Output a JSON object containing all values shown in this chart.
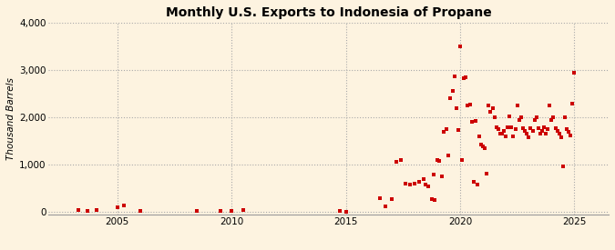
{
  "title": "Monthly U.S. Exports to Indonesia of Propane",
  "ylabel": "Thousand Barrels",
  "background_color": "#fdf3e0",
  "dot_color": "#cc0000",
  "xlim": [
    2002.0,
    2026.5
  ],
  "ylim": [
    -50,
    4000
  ],
  "yticks": [
    0,
    1000,
    2000,
    3000,
    4000
  ],
  "xticks": [
    2005,
    2010,
    2015,
    2020,
    2025
  ],
  "scatter_data": [
    [
      2003.3,
      50
    ],
    [
      2003.7,
      30
    ],
    [
      2004.1,
      40
    ],
    [
      2005.0,
      100
    ],
    [
      2005.3,
      150
    ],
    [
      2006.0,
      30
    ],
    [
      2008.5,
      20
    ],
    [
      2009.5,
      30
    ],
    [
      2010.0,
      20
    ],
    [
      2010.5,
      50
    ],
    [
      2014.75,
      30
    ],
    [
      2015.0,
      10
    ],
    [
      2016.5,
      300
    ],
    [
      2016.75,
      120
    ],
    [
      2017.0,
      280
    ],
    [
      2017.2,
      1070
    ],
    [
      2017.4,
      1100
    ],
    [
      2017.6,
      600
    ],
    [
      2017.8,
      580
    ],
    [
      2018.0,
      600
    ],
    [
      2018.2,
      650
    ],
    [
      2018.4,
      700
    ],
    [
      2018.5,
      590
    ],
    [
      2018.6,
      550
    ],
    [
      2018.75,
      280
    ],
    [
      2018.85,
      790
    ],
    [
      2018.9,
      260
    ],
    [
      2019.0,
      1100
    ],
    [
      2019.1,
      1080
    ],
    [
      2019.2,
      750
    ],
    [
      2019.3,
      1700
    ],
    [
      2019.4,
      1750
    ],
    [
      2019.5,
      1200
    ],
    [
      2019.58,
      2400
    ],
    [
      2019.67,
      2550
    ],
    [
      2019.75,
      2870
    ],
    [
      2019.83,
      2200
    ],
    [
      2019.92,
      1730
    ],
    [
      2020.0,
      3500
    ],
    [
      2020.08,
      1100
    ],
    [
      2020.17,
      2820
    ],
    [
      2020.25,
      2850
    ],
    [
      2020.33,
      2250
    ],
    [
      2020.42,
      2280
    ],
    [
      2020.5,
      1900
    ],
    [
      2020.58,
      650
    ],
    [
      2020.67,
      1920
    ],
    [
      2020.75,
      580
    ],
    [
      2020.83,
      1600
    ],
    [
      2020.92,
      1430
    ],
    [
      2021.0,
      1380
    ],
    [
      2021.08,
      1350
    ],
    [
      2021.17,
      820
    ],
    [
      2021.25,
      2250
    ],
    [
      2021.33,
      2120
    ],
    [
      2021.42,
      2200
    ],
    [
      2021.5,
      2000
    ],
    [
      2021.58,
      1800
    ],
    [
      2021.67,
      1750
    ],
    [
      2021.75,
      1650
    ],
    [
      2021.83,
      1650
    ],
    [
      2021.92,
      1720
    ],
    [
      2022.0,
      1600
    ],
    [
      2022.08,
      1800
    ],
    [
      2022.17,
      2030
    ],
    [
      2022.25,
      1800
    ],
    [
      2022.33,
      1600
    ],
    [
      2022.42,
      1750
    ],
    [
      2022.5,
      2250
    ],
    [
      2022.58,
      1950
    ],
    [
      2022.67,
      2000
    ],
    [
      2022.75,
      1780
    ],
    [
      2022.83,
      1720
    ],
    [
      2022.92,
      1650
    ],
    [
      2023.0,
      1580
    ],
    [
      2023.08,
      1780
    ],
    [
      2023.17,
      1720
    ],
    [
      2023.25,
      1950
    ],
    [
      2023.33,
      2000
    ],
    [
      2023.42,
      1780
    ],
    [
      2023.5,
      1650
    ],
    [
      2023.58,
      1720
    ],
    [
      2023.67,
      1800
    ],
    [
      2023.75,
      1650
    ],
    [
      2023.83,
      1750
    ],
    [
      2023.92,
      2250
    ],
    [
      2024.0,
      1950
    ],
    [
      2024.08,
      2000
    ],
    [
      2024.17,
      1780
    ],
    [
      2024.25,
      1720
    ],
    [
      2024.33,
      1650
    ],
    [
      2024.42,
      1580
    ],
    [
      2024.5,
      960
    ],
    [
      2024.58,
      2010
    ],
    [
      2024.67,
      1750
    ],
    [
      2024.75,
      1700
    ],
    [
      2024.83,
      1620
    ],
    [
      2024.92,
      2300
    ],
    [
      2025.0,
      2950
    ]
  ]
}
